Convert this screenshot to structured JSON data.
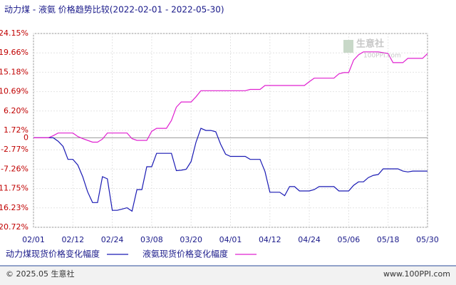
{
  "chart_data": {
    "type": "line",
    "title": "动力煤 - 液氨 价格趋势比较(2022-02-01 - 2022-05-30)",
    "watermark": [
      "生意社",
      "100PPI.com"
    ],
    "categories": [
      "02/01",
      null,
      null,
      null,
      null,
      null,
      null,
      null,
      "02/12",
      null,
      null,
      null,
      null,
      null,
      null,
      null,
      "02/24",
      null,
      null,
      null,
      null,
      null,
      null,
      null,
      "03/08",
      null,
      null,
      null,
      null,
      null,
      null,
      null,
      "03/20",
      null,
      null,
      null,
      null,
      null,
      null,
      null,
      "04/01",
      null,
      null,
      null,
      null,
      null,
      null,
      null,
      "04/12",
      null,
      null,
      null,
      null,
      null,
      null,
      null,
      "04/24",
      null,
      null,
      null,
      null,
      null,
      null,
      null,
      "05/06",
      null,
      null,
      null,
      null,
      null,
      null,
      null,
      "05/18",
      null,
      null,
      null,
      null,
      null,
      null,
      null,
      "05/30"
    ],
    "series": [
      {
        "name": "动力煤现货价格变化幅度",
        "color": "#1a1ab4",
        "values": [
          0,
          0,
          0,
          0,
          0,
          -0.8,
          -2,
          -5,
          -5,
          -6.3,
          -9,
          -12.5,
          -15,
          -15,
          -9,
          -9.5,
          -16.8,
          -16.8,
          -16.5,
          -16.2,
          -17,
          -12,
          -12,
          -6.7,
          -6.7,
          -3.6,
          -3.6,
          -3.6,
          -3.6,
          -7.6,
          -7.5,
          -7.3,
          -5.5,
          -1,
          2.2,
          1.7,
          1.7,
          1.4,
          -1.5,
          -3.8,
          -4.3,
          -4.3,
          -4.3,
          -4.3,
          -5,
          -5,
          -5,
          -7.8,
          -12.6,
          -12.6,
          -12.6,
          -13.4,
          -11.3,
          -11.3,
          -12.3,
          -12.3,
          -12.3,
          -12,
          -11.3,
          -11.3,
          -11.3,
          -11.3,
          -12.3,
          -12.3,
          -12.3,
          -11,
          -10.2,
          -10.2,
          -9.2,
          -8.7,
          -8.5,
          -7.2,
          -7.2,
          -7.2,
          -7.2,
          -7.7,
          -7.9,
          -7.7,
          -7.7,
          -7.7,
          -7.7
        ]
      },
      {
        "name": "液氨现货价格变化幅度",
        "color": "#e020d0",
        "values": [
          0,
          0,
          0,
          0,
          0.5,
          1.1,
          1.1,
          1.1,
          1.1,
          0.3,
          -0.2,
          -0.6,
          -1,
          -1,
          -0.3,
          1.1,
          1.1,
          1.1,
          1.1,
          1.1,
          -0.2,
          -0.6,
          -0.6,
          -0.6,
          1.5,
          2.2,
          2.2,
          2.2,
          4,
          7.1,
          8.3,
          8.3,
          8.3,
          9.5,
          10.9,
          10.9,
          10.9,
          10.9,
          10.9,
          10.9,
          10.9,
          10.9,
          10.9,
          10.9,
          11.2,
          11.2,
          11.2,
          12.1,
          12.1,
          12.1,
          12.1,
          12.1,
          12.1,
          12.1,
          12.1,
          12.1,
          13,
          13.8,
          13.8,
          13.8,
          13.8,
          13.8,
          14.8,
          15.1,
          15.1,
          18,
          19.2,
          19.9,
          19.9,
          19.9,
          19.9,
          19.7,
          19.5,
          17.4,
          17.4,
          17.4,
          18.4,
          18.4,
          18.4,
          18.4,
          19.5
        ]
      }
    ],
    "ylim": [
      -20.72,
      24.15
    ],
    "yticks": [
      {
        "value": 24.15,
        "label": "24.15%"
      },
      {
        "value": 19.66,
        "label": "19.66%"
      },
      {
        "value": 15.18,
        "label": "15.18%"
      },
      {
        "value": 10.69,
        "label": "10.69%"
      },
      {
        "value": 6.2,
        "label": "6.20%"
      },
      {
        "value": 1.72,
        "label": "1.72%"
      },
      0,
      {
        "value": -2.77,
        "label": "-2.77%"
      },
      {
        "value": -7.26,
        "label": "-7.26%"
      },
      {
        "value": -11.75,
        "label": "-11.75%"
      },
      {
        "value": -16.23,
        "label": "-16.23%"
      },
      {
        "value": -20.72,
        "label": "-20.72%"
      }
    ],
    "grid": true
  },
  "footer": {
    "copyright": "© 2025.05 生意社",
    "site": "www.100PPI.com"
  }
}
